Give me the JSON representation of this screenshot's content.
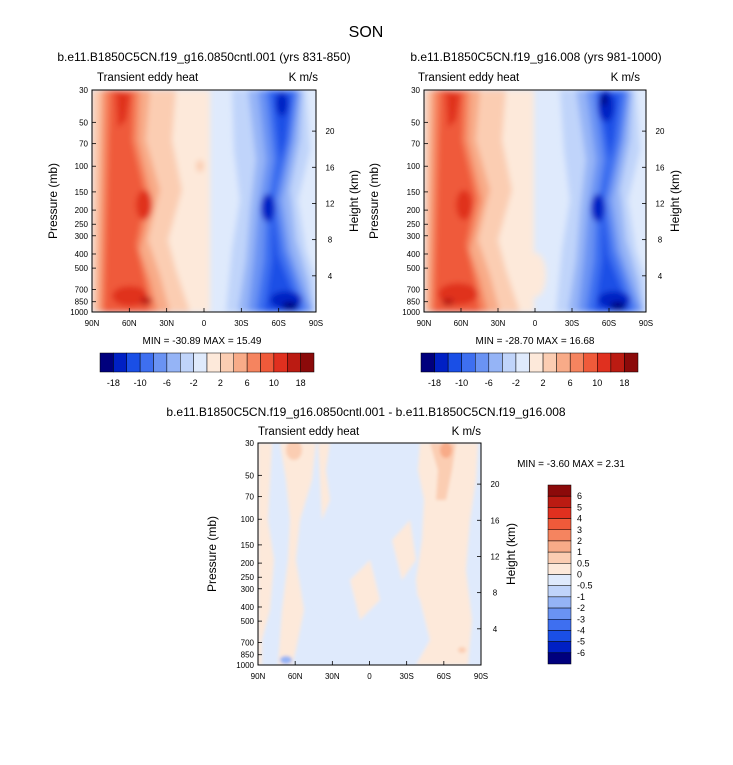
{
  "figure_title": "SON",
  "colors": {
    "neg": [
      "#00007d",
      "#0020c4",
      "#1a4fe6",
      "#3e6ff0",
      "#6a93f3",
      "#95b4f6",
      "#c0d4fa",
      "#dfeafc"
    ],
    "pos": [
      "#fde9da",
      "#fbcdb2",
      "#f8ab88",
      "#f5845f",
      "#ef5a3a",
      "#e0301f",
      "#bb1b12",
      "#8b0a0a"
    ]
  },
  "chart_data": [
    {
      "type": "heatmap",
      "id": "panel1",
      "title": "b.e11.B1850C5CN.f19_g16.0850cntl.001 (yrs 831-850)",
      "left_string": "Transient eddy heat",
      "right_string": "K m/s",
      "xlabel": "",
      "ylabel": "Pressure (mb)",
      "ylabel_right": "Height (km)",
      "x_ticks": [
        "90N",
        "60N",
        "30N",
        "0",
        "30S",
        "60S",
        "90S"
      ],
      "y_ticks": [
        "30",
        "50",
        "70",
        "100",
        "150",
        "200",
        "250",
        "300",
        "400",
        "500",
        "700",
        "850",
        "1000"
      ],
      "y_ticks_right": [
        "20",
        "16",
        "12",
        "8",
        "4"
      ],
      "stat_text": "MIN = -30.89  MAX =  15.49",
      "min": -30.89,
      "max": 15.49,
      "colorbar_labels": [
        "-18",
        "-10",
        "-6",
        "-2",
        "2",
        "6",
        "10",
        "18"
      ]
    },
    {
      "type": "heatmap",
      "id": "panel2",
      "title": "b.e11.B1850C5CN.f19_g16.008 (yrs 981-1000)",
      "left_string": "Transient eddy heat",
      "right_string": "K m/s",
      "xlabel": "",
      "ylabel": "Pressure (mb)",
      "ylabel_right": "Height (km)",
      "x_ticks": [
        "90N",
        "60N",
        "30N",
        "0",
        "30S",
        "60S",
        "90S"
      ],
      "y_ticks": [
        "30",
        "50",
        "70",
        "100",
        "150",
        "200",
        "250",
        "300",
        "400",
        "500",
        "700",
        "850",
        "1000"
      ],
      "y_ticks_right": [
        "20",
        "16",
        "12",
        "8",
        "4"
      ],
      "stat_text": "MIN = -28.70  MAX =  16.68",
      "min": -28.7,
      "max": 16.68,
      "colorbar_labels": [
        "-18",
        "-10",
        "-6",
        "-2",
        "2",
        "6",
        "10",
        "18"
      ]
    },
    {
      "type": "heatmap",
      "id": "panel3",
      "title": "b.e11.B1850C5CN.f19_g16.0850cntl.001 - b.e11.B1850C5CN.f19_g16.008",
      "left_string": "Transient eddy heat",
      "right_string": "K m/s",
      "xlabel": "",
      "ylabel": "Pressure (mb)",
      "ylabel_right": "Height (km)",
      "x_ticks": [
        "90N",
        "60N",
        "30N",
        "0",
        "30S",
        "60S",
        "90S"
      ],
      "y_ticks": [
        "30",
        "50",
        "70",
        "100",
        "150",
        "200",
        "250",
        "300",
        "400",
        "500",
        "700",
        "850",
        "1000"
      ],
      "y_ticks_right": [
        "20",
        "16",
        "12",
        "8",
        "4"
      ],
      "stat_text": "MIN = -3.60  MAX =  2.31",
      "min": -3.6,
      "max": 2.31,
      "colorbar_labels": [
        "6",
        "5",
        "4",
        "3",
        "2",
        "1",
        "0.5",
        "0",
        "-0.5",
        "-1",
        "-2",
        "-3",
        "-4",
        "-5",
        "-6"
      ]
    }
  ]
}
